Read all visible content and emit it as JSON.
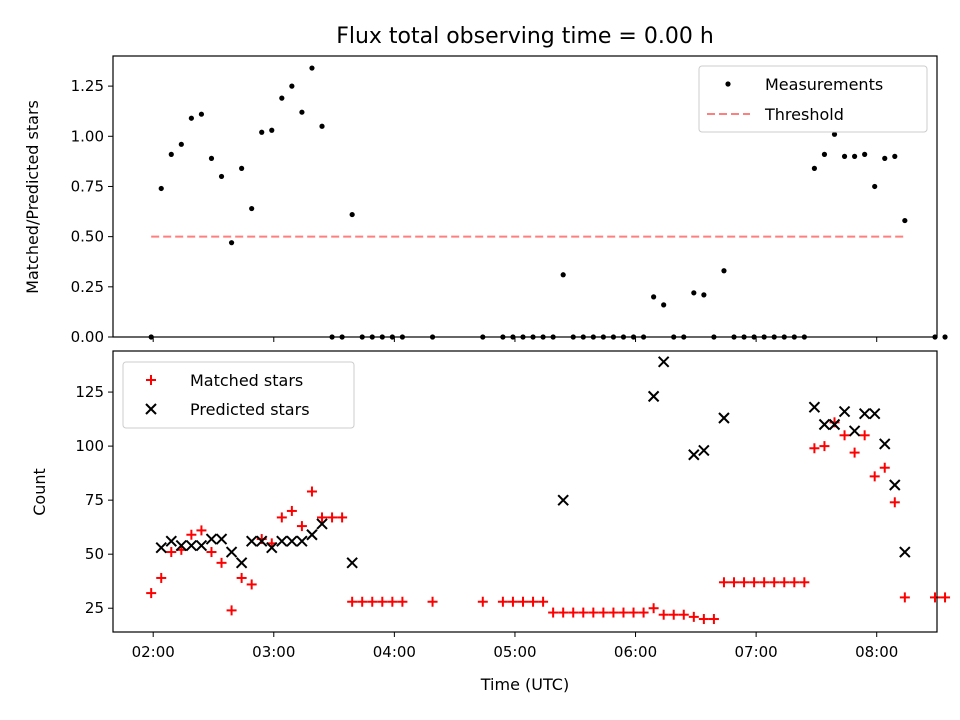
{
  "figure": {
    "title": "Flux total observing time = 0.00 h"
  },
  "chart_data": [
    {
      "type": "scatter",
      "ylabel": "Matched/Predicted stars",
      "xlabel": "",
      "xlim": [
        "01:40",
        "08:30"
      ],
      "ylim": [
        0,
        1.4
      ],
      "yticks": [
        "0.00",
        "0.25",
        "0.50",
        "0.75",
        "1.00",
        "1.25"
      ],
      "x_tick_labels_shown": false,
      "legend_position": "upper right",
      "series": [
        {
          "name": "Measurements",
          "kind": "points",
          "color": "#000000",
          "points": [
            [
              "01:59",
              0.0
            ],
            [
              "02:04",
              0.74
            ],
            [
              "02:09",
              0.91
            ],
            [
              "02:14",
              0.96
            ],
            [
              "02:19",
              1.09
            ],
            [
              "02:24",
              1.11
            ],
            [
              "02:29",
              0.89
            ],
            [
              "02:34",
              0.8
            ],
            [
              "02:39",
              0.47
            ],
            [
              "02:44",
              0.84
            ],
            [
              "02:49",
              0.64
            ],
            [
              "02:54",
              1.02
            ],
            [
              "02:59",
              1.03
            ],
            [
              "03:04",
              1.19
            ],
            [
              "03:09",
              1.25
            ],
            [
              "03:14",
              1.12
            ],
            [
              "03:19",
              1.34
            ],
            [
              "03:24",
              1.05
            ],
            [
              "03:29",
              0.0
            ],
            [
              "03:34",
              0.0
            ],
            [
              "03:39",
              0.61
            ],
            [
              "03:44",
              0.0
            ],
            [
              "03:49",
              0.0
            ],
            [
              "03:54",
              0.0
            ],
            [
              "03:59",
              0.0
            ],
            [
              "04:04",
              0.0
            ],
            [
              "04:19",
              0.0
            ],
            [
              "04:44",
              0.0
            ],
            [
              "04:54",
              0.0
            ],
            [
              "04:59",
              0.0
            ],
            [
              "05:04",
              0.0
            ],
            [
              "05:09",
              0.0
            ],
            [
              "05:14",
              0.0
            ],
            [
              "05:19",
              0.0
            ],
            [
              "05:24",
              0.31
            ],
            [
              "05:29",
              0.0
            ],
            [
              "05:34",
              0.0
            ],
            [
              "05:39",
              0.0
            ],
            [
              "05:44",
              0.0
            ],
            [
              "05:49",
              0.0
            ],
            [
              "05:54",
              0.0
            ],
            [
              "05:59",
              0.0
            ],
            [
              "06:04",
              0.0
            ],
            [
              "06:09",
              0.2
            ],
            [
              "06:14",
              0.16
            ],
            [
              "06:19",
              0.0
            ],
            [
              "06:24",
              0.0
            ],
            [
              "06:29",
              0.22
            ],
            [
              "06:34",
              0.21
            ],
            [
              "06:39",
              0.0
            ],
            [
              "06:44",
              0.33
            ],
            [
              "06:49",
              0.0
            ],
            [
              "06:54",
              0.0
            ],
            [
              "06:59",
              0.0
            ],
            [
              "07:04",
              0.0
            ],
            [
              "07:09",
              0.0
            ],
            [
              "07:14",
              0.0
            ],
            [
              "07:19",
              0.0
            ],
            [
              "07:24",
              0.0
            ],
            [
              "07:29",
              0.84
            ],
            [
              "07:34",
              0.91
            ],
            [
              "07:39",
              1.01
            ],
            [
              "07:44",
              0.9
            ],
            [
              "07:49",
              0.9
            ],
            [
              "07:54",
              0.91
            ],
            [
              "07:59",
              0.75
            ],
            [
              "08:04",
              0.89
            ],
            [
              "08:09",
              0.9
            ],
            [
              "08:14",
              0.58
            ],
            [
              "08:29",
              0.0
            ],
            [
              "08:34",
              0.0
            ]
          ]
        },
        {
          "name": "Threshold",
          "kind": "dashed-line",
          "color": "#ff7f7f",
          "x": [
            "01:59",
            "08:14"
          ],
          "y": [
            0.5,
            0.5
          ]
        }
      ]
    },
    {
      "type": "scatter",
      "ylabel": "Count",
      "xlabel": "Time (UTC)",
      "xlim": [
        "01:40",
        "08:30"
      ],
      "ylim": [
        14,
        144
      ],
      "yticks": [
        "25",
        "50",
        "75",
        "100",
        "125"
      ],
      "xticks": [
        "02:00",
        "03:00",
        "04:00",
        "05:00",
        "06:00",
        "07:00",
        "08:00"
      ],
      "legend_position": "upper left",
      "series": [
        {
          "name": "Matched stars",
          "marker": "plus",
          "color": "#ff0000",
          "points": [
            [
              "01:59",
              32
            ],
            [
              "02:04",
              39
            ],
            [
              "02:09",
              51
            ],
            [
              "02:14",
              52
            ],
            [
              "02:19",
              59
            ],
            [
              "02:24",
              61
            ],
            [
              "02:29",
              51
            ],
            [
              "02:34",
              46
            ],
            [
              "02:39",
              24
            ],
            [
              "02:44",
              39
            ],
            [
              "02:49",
              36
            ],
            [
              "02:54",
              57
            ],
            [
              "02:59",
              55
            ],
            [
              "03:04",
              67
            ],
            [
              "03:09",
              70
            ],
            [
              "03:14",
              63
            ],
            [
              "03:19",
              79
            ],
            [
              "03:24",
              67
            ],
            [
              "03:29",
              67
            ],
            [
              "03:34",
              67
            ],
            [
              "03:39",
              28
            ],
            [
              "03:44",
              28
            ],
            [
              "03:49",
              28
            ],
            [
              "03:54",
              28
            ],
            [
              "03:59",
              28
            ],
            [
              "04:04",
              28
            ],
            [
              "04:19",
              28
            ],
            [
              "04:44",
              28
            ],
            [
              "04:54",
              28
            ],
            [
              "04:59",
              28
            ],
            [
              "05:04",
              28
            ],
            [
              "05:09",
              28
            ],
            [
              "05:14",
              28
            ],
            [
              "05:19",
              23
            ],
            [
              "05:24",
              23
            ],
            [
              "05:29",
              23
            ],
            [
              "05:34",
              23
            ],
            [
              "05:39",
              23
            ],
            [
              "05:44",
              23
            ],
            [
              "05:49",
              23
            ],
            [
              "05:54",
              23
            ],
            [
              "05:59",
              23
            ],
            [
              "06:04",
              23
            ],
            [
              "06:09",
              25
            ],
            [
              "06:14",
              22
            ],
            [
              "06:19",
              22
            ],
            [
              "06:24",
              22
            ],
            [
              "06:29",
              21
            ],
            [
              "06:34",
              20
            ],
            [
              "06:39",
              20
            ],
            [
              "06:44",
              37
            ],
            [
              "06:49",
              37
            ],
            [
              "06:54",
              37
            ],
            [
              "06:59",
              37
            ],
            [
              "07:04",
              37
            ],
            [
              "07:09",
              37
            ],
            [
              "07:14",
              37
            ],
            [
              "07:19",
              37
            ],
            [
              "07:24",
              37
            ],
            [
              "07:29",
              99
            ],
            [
              "07:34",
              100
            ],
            [
              "07:39",
              111
            ],
            [
              "07:44",
              105
            ],
            [
              "07:49",
              97
            ],
            [
              "07:54",
              105
            ],
            [
              "07:59",
              86
            ],
            [
              "08:04",
              90
            ],
            [
              "08:09",
              74
            ],
            [
              "08:14",
              30
            ],
            [
              "08:29",
              30
            ],
            [
              "08:34",
              30
            ]
          ]
        },
        {
          "name": "Predicted stars",
          "marker": "x",
          "color": "#000000",
          "points": [
            [
              "02:04",
              53
            ],
            [
              "02:09",
              56
            ],
            [
              "02:14",
              54
            ],
            [
              "02:19",
              54
            ],
            [
              "02:24",
              54
            ],
            [
              "02:29",
              57
            ],
            [
              "02:34",
              57
            ],
            [
              "02:39",
              51
            ],
            [
              "02:44",
              46
            ],
            [
              "02:49",
              56
            ],
            [
              "02:54",
              56
            ],
            [
              "02:59",
              53
            ],
            [
              "03:04",
              56
            ],
            [
              "03:09",
              56
            ],
            [
              "03:14",
              56
            ],
            [
              "03:19",
              59
            ],
            [
              "03:24",
              64
            ],
            [
              "03:39",
              46
            ],
            [
              "05:24",
              75
            ],
            [
              "06:09",
              123
            ],
            [
              "06:14",
              139
            ],
            [
              "06:29",
              96
            ],
            [
              "06:34",
              98
            ],
            [
              "06:44",
              113
            ],
            [
              "07:29",
              118
            ],
            [
              "07:34",
              110
            ],
            [
              "07:39",
              110
            ],
            [
              "07:44",
              116
            ],
            [
              "07:49",
              107
            ],
            [
              "07:54",
              115
            ],
            [
              "07:59",
              115
            ],
            [
              "08:04",
              101
            ],
            [
              "08:09",
              82
            ],
            [
              "08:14",
              51
            ]
          ]
        }
      ]
    }
  ]
}
